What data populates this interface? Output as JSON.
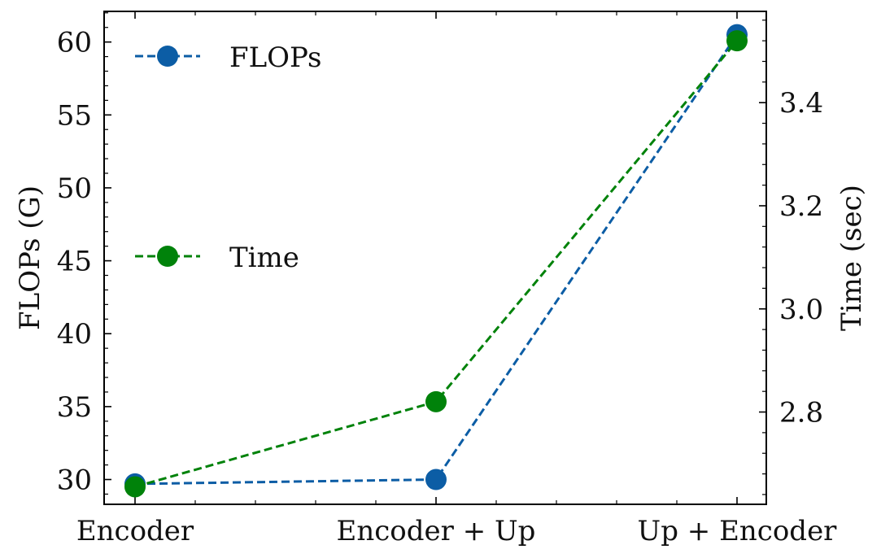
{
  "chart_data": {
    "type": "line",
    "categories": [
      "Encoder",
      "Encoder + Up",
      "Up + Encoder"
    ],
    "series": [
      {
        "name": "FLOPs",
        "axis": "left",
        "color": "#0c5da5",
        "linestyle": "dashed",
        "marker": "circle",
        "values": [
          29.7,
          30.0,
          60.5
        ]
      },
      {
        "name": "Time",
        "axis": "right",
        "color": "#00820a",
        "linestyle": "dashed",
        "marker": "circle",
        "values": [
          2.655,
          2.82,
          3.52
        ]
      }
    ],
    "ylabel": "FLOPs (G)",
    "ylabel_right": "Time (sec)",
    "ylim": [
      28.3,
      62.1
    ],
    "ylim_right": [
      2.621,
      3.577
    ],
    "yticks": [
      "30",
      "35",
      "40",
      "45",
      "50",
      "55",
      "60"
    ],
    "yticks_right": [
      "2.8",
      "3.0",
      "3.2",
      "3.4"
    ],
    "grid": false,
    "legend": {
      "placement": "left",
      "entries": [
        "FLOPs",
        "Time"
      ]
    }
  }
}
